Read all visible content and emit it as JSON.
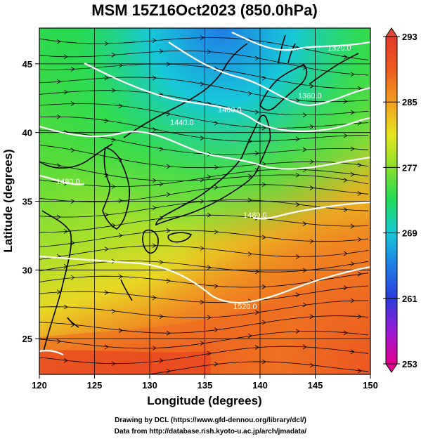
{
  "title": "MSM 15Z16Oct2023 (850.0hPa)",
  "x_axis": {
    "label": "Longitude (degrees)",
    "range": [
      120,
      150
    ],
    "ticks": [
      "120",
      "125",
      "130",
      "135",
      "140",
      "145",
      "150"
    ],
    "tick_values": [
      120,
      125,
      130,
      135,
      140,
      145,
      150
    ]
  },
  "y_axis": {
    "label": "Latitude  (degrees)",
    "range": [
      22.4,
      47.6
    ],
    "ticks": [
      "25",
      "30",
      "35",
      "40",
      "45"
    ],
    "tick_values": [
      25,
      30,
      35,
      40,
      45
    ]
  },
  "colorbar": {
    "labels": [
      "293",
      "285",
      "277",
      "269",
      "261",
      "253"
    ],
    "values": [
      293,
      285,
      277,
      269,
      261,
      253
    ],
    "min": 253,
    "max": 293,
    "colors": [
      "#e3008c",
      "#9a1bd6",
      "#2b3cdc",
      "#1f7de6",
      "#17c8d8",
      "#20dc5a",
      "#8ae02b",
      "#e6e620",
      "#f0a020",
      "#ee5a20",
      "#e43a2a"
    ]
  },
  "field": "temperature (K) with 850hPa geopotential height contours and streamlines",
  "contour_labels": [
    "1320.0",
    "1360.0",
    "1400.0",
    "1440.0",
    "1480.0",
    "1480.0",
    "1520.0"
  ],
  "credits": {
    "line1": "Drawing by DCL (https://www.gfd-dennou.org/library/dcl/)",
    "line2": "Data from http://database.rish.kyoto-u.ac.jp/arch/jmadata/"
  }
}
